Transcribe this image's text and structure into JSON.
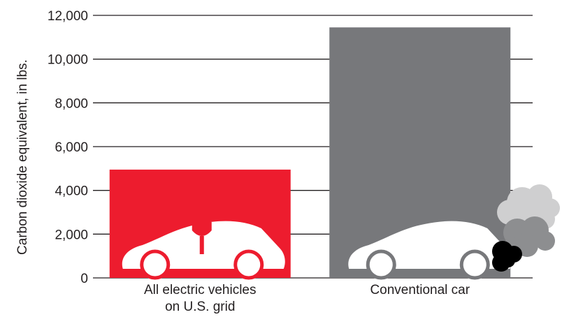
{
  "chart_data": {
    "type": "bar",
    "title": "",
    "xlabel": "",
    "ylabel": "Carbon dioxide equivalent, in lbs.",
    "ylim": [
      0,
      12000
    ],
    "yticks": [
      0,
      2000,
      4000,
      6000,
      8000,
      10000,
      12000
    ],
    "ytick_labels": [
      "0",
      "2,000",
      "4,000",
      "6,000",
      "8,000",
      "10,000",
      "12,000"
    ],
    "categories": [
      [
        "All electric vehicles",
        "on U.S. grid"
      ],
      [
        "Conventional car"
      ]
    ],
    "values": [
      4950,
      11450
    ],
    "colors": [
      "#ed1c2e",
      "#77787b"
    ],
    "grid": true,
    "legend": "none",
    "icons": [
      "electric-car-icon",
      "conventional-car-with-exhaust-icon"
    ]
  }
}
